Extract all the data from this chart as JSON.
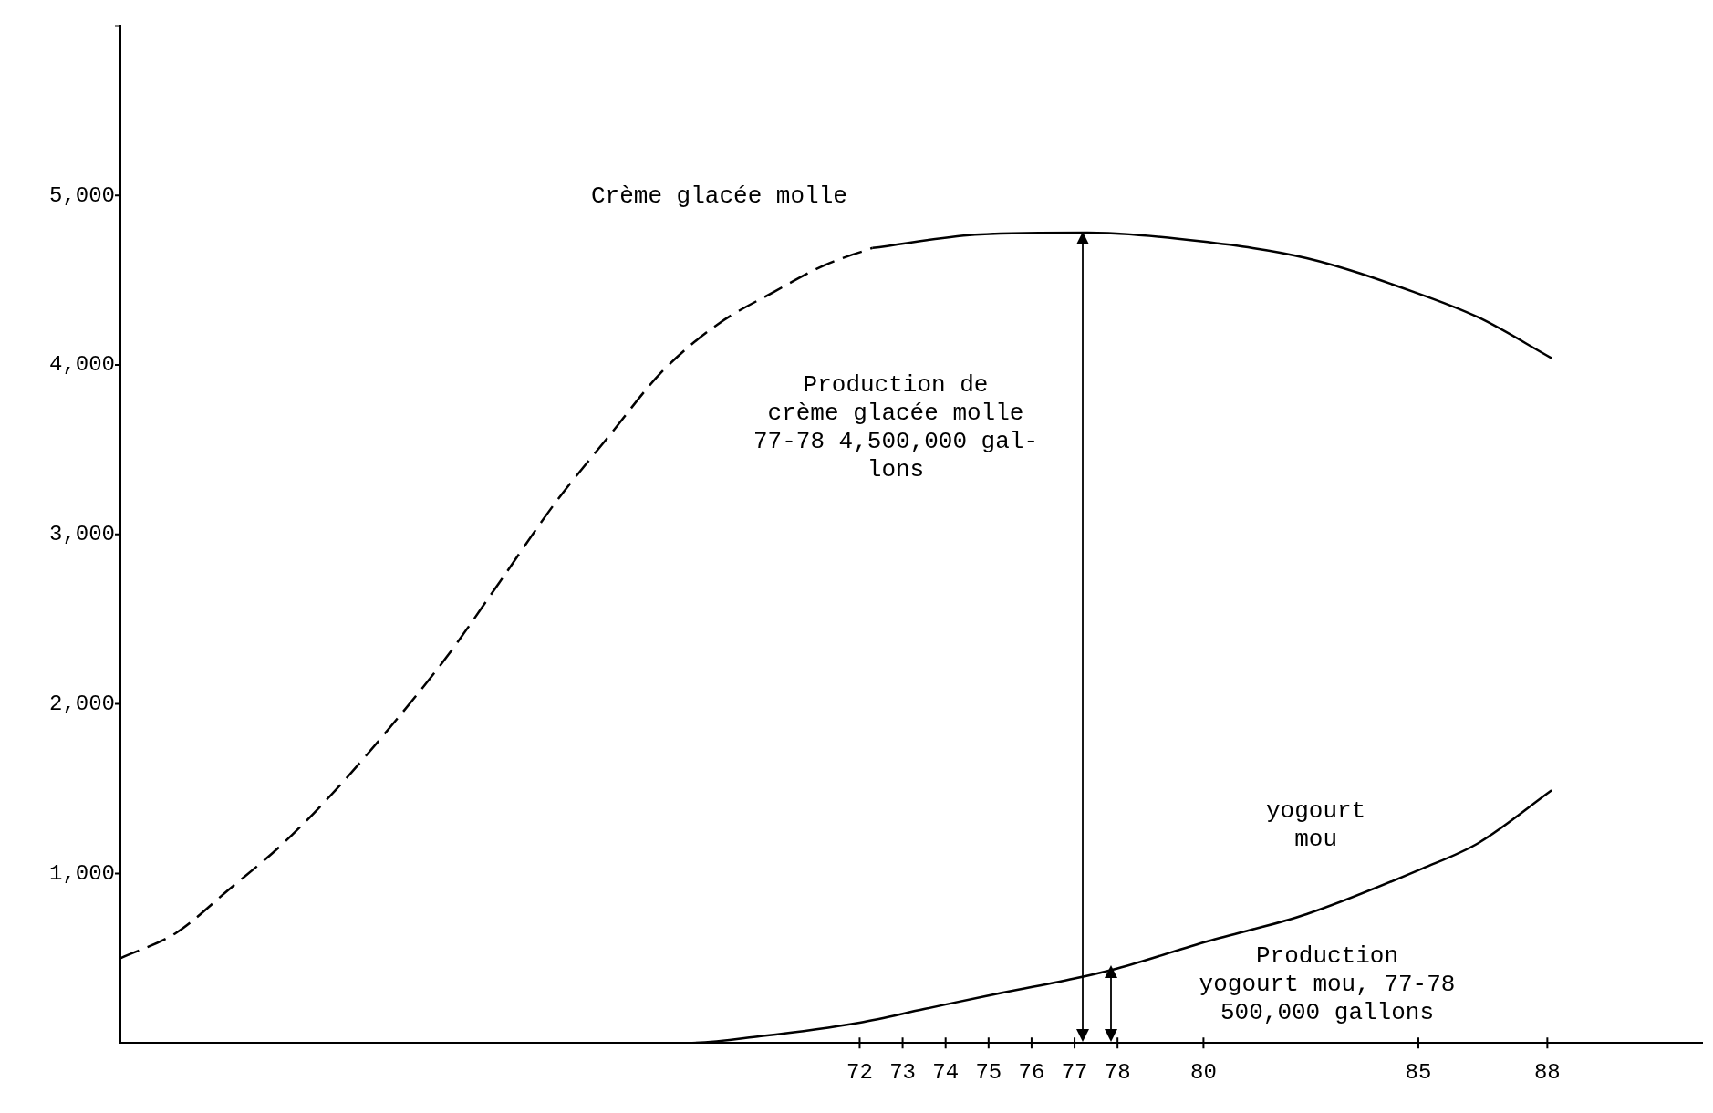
{
  "chart_data": {
    "type": "line",
    "xlim": [
      54.8,
      91.6
    ],
    "xticks": [
      72,
      73,
      74,
      75,
      76,
      77,
      78,
      80,
      85,
      88
    ],
    "ylim": [
      0,
      6000
    ],
    "yticks": [
      {
        "value": 1000,
        "label": "1,000"
      },
      {
        "value": 2000,
        "label": "2,000"
      },
      {
        "value": 3000,
        "label": "3,000"
      },
      {
        "value": 4000,
        "label": "4,000"
      },
      {
        "value": 5000,
        "label": "5,000"
      },
      {
        "value": 6000,
        "label": null
      }
    ],
    "grid": false,
    "legend": false,
    "marker": "none",
    "series": [
      {
        "name": "Crème glacée molle",
        "color": "#000000",
        "line_style": "dashed",
        "x": [
          54.8,
          56.1,
          57.3,
          58.6,
          59.8,
          61.1,
          62.4,
          63.6,
          64.9,
          66.2,
          67.4,
          68.7,
          70.0,
          71.2,
          72.3
        ],
        "values": [
          500,
          650,
          900,
          1180,
          1490,
          1870,
          2280,
          2710,
          3180,
          3590,
          3960,
          4240,
          4430,
          4590,
          4690
        ]
      },
      {
        "color": "#000000",
        "line_style": "solid",
        "x": [
          72.3,
          74.8,
          77.3,
          79.9,
          82.4,
          84.9,
          86.4,
          88.1
        ],
        "values": [
          4690,
          4770,
          4780,
          4730,
          4630,
          4430,
          4280,
          4040
        ]
      },
      {
        "name": "yogourt\nmou",
        "color": "#000000",
        "line_style": "solid",
        "x": [
          54.8,
          68.0,
          69.7,
          72.0,
          73.5,
          75.0,
          77.0,
          78.0,
          80.1,
          82.4,
          85.1,
          86.4,
          88.1
        ],
        "values": [
          0,
          0,
          40,
          120,
          200,
          280,
          380,
          440,
          600,
          760,
          1030,
          1180,
          1490
        ]
      }
    ],
    "annotations": [
      "Production de\ncrème glacée molle\n77-78 4,500,000 gal-\nlons",
      "Production\nyogourt mou, 77-78\n500,000 gallons"
    ]
  }
}
